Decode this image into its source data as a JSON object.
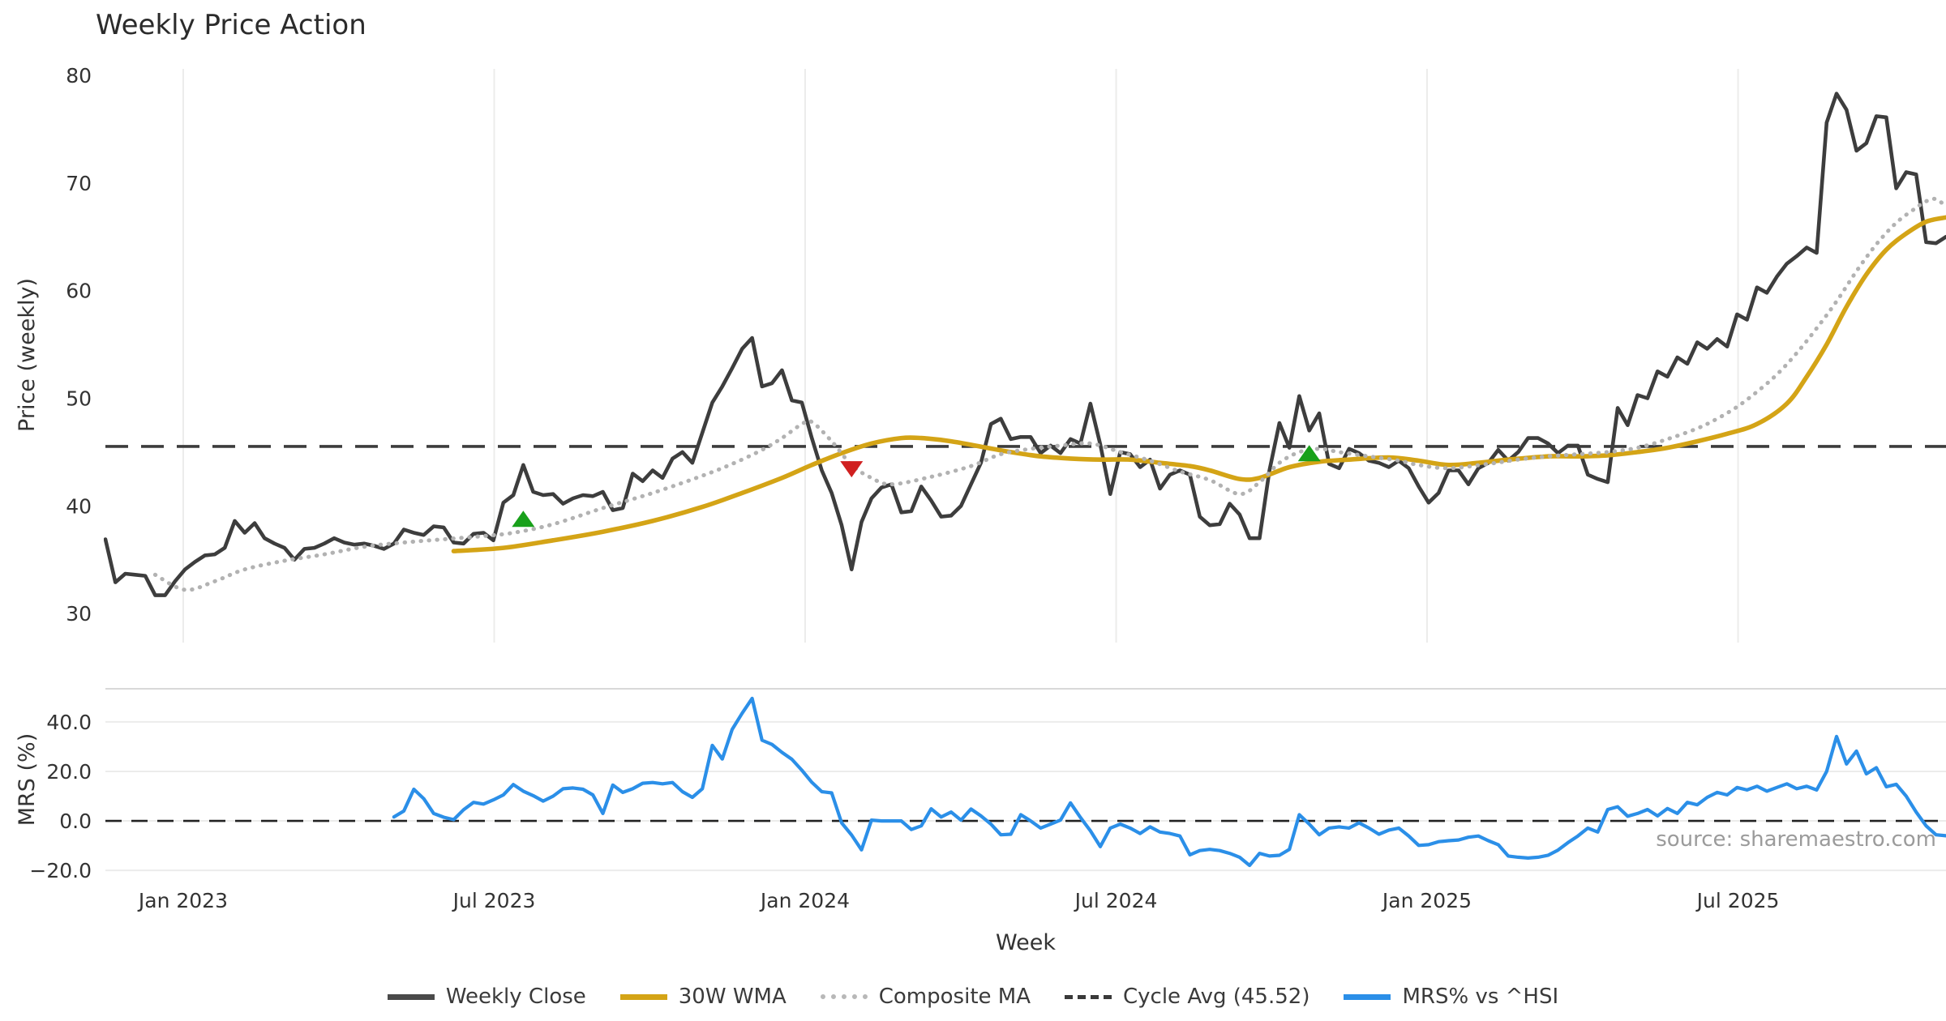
{
  "title": "Weekly Price Action",
  "watermark": "source: sharemaestro.com",
  "xlabel": "Week",
  "price_panel": {
    "ylabel": "Price (weekly)"
  },
  "mrs_panel": {
    "ylabel": "MRS (%)"
  },
  "legend": {
    "items": [
      {
        "label": "Weekly Close",
        "swatch": "solid",
        "color": "#4a4a4a"
      },
      {
        "label": "30W WMA",
        "swatch": "solid",
        "color": "#d4a416"
      },
      {
        "label": "Composite MA",
        "swatch": "dotted",
        "color": "#b8b8b8"
      },
      {
        "label": "Cycle Avg (45.52)",
        "swatch": "dashed",
        "color": "#3a3a3a"
      },
      {
        "label": "MRS% vs ^HSI",
        "swatch": "solid",
        "color": "#2b8fe8"
      }
    ]
  },
  "chart_data": {
    "type": "line",
    "panels": [
      {
        "id": "price",
        "ylabel": "Price (weekly)",
        "ylim": [
          27.3,
          80.6
        ],
        "yticks": [
          {
            "label": "30",
            "v": 30
          },
          {
            "label": "40",
            "v": 40
          },
          {
            "label": "50",
            "v": 50
          },
          {
            "label": "60",
            "v": 60
          },
          {
            "label": "70",
            "v": 70
          },
          {
            "label": "80",
            "v": 80
          }
        ],
        "grid": "vertical"
      },
      {
        "id": "mrs",
        "ylabel": "MRS (%)",
        "ylim": [
          -25.2,
          53.4
        ],
        "yticks": [
          {
            "label": "−20.0",
            "v": -20
          },
          {
            "label": "0.0",
            "v": 0
          },
          {
            "label": "20.0",
            "v": 20
          },
          {
            "label": "40.0",
            "v": 40
          }
        ],
        "grid": "horizontal"
      }
    ],
    "x_ticks": [
      {
        "label": "Jan 2023",
        "i": 7.82
      },
      {
        "label": "Jul 2023",
        "i": 39.08
      },
      {
        "label": "Jan 2024",
        "i": 70.33
      },
      {
        "label": "Jul 2024",
        "i": 101.59
      },
      {
        "label": "Jan 2025",
        "i": 132.84
      },
      {
        "label": "Jul 2025",
        "i": 164.1
      }
    ],
    "x_range": [
      0,
      185
    ],
    "cycle_avg": {
      "value": 45.52,
      "label": "Cycle Avg (45.52)",
      "color": "#3c3c3c"
    },
    "mrs_zero_line": {
      "value": 0,
      "color": "#222222"
    },
    "colors": {
      "close": "#3d3d3d",
      "wma": "#d4a416",
      "composite": "#b2b2b2",
      "mrs": "#2b8fe8",
      "marker_up": "#18a01a",
      "marker_down": "#d02020",
      "grid": "#ececeb",
      "spine": "#d9d9d9"
    },
    "series": [
      {
        "id": "close",
        "name": "Weekly Close",
        "panel": "price",
        "style": "solid",
        "width": 4.6,
        "start": 0,
        "values": [
          36.9,
          32.9,
          33.7,
          33.6,
          33.5,
          31.7,
          31.7,
          33.0,
          34.1,
          34.8,
          35.4,
          35.5,
          36.1,
          38.6,
          37.5,
          38.4,
          37.0,
          36.5,
          36.1,
          35.0,
          36.0,
          36.1,
          36.5,
          37.0,
          36.6,
          36.4,
          36.5,
          36.3,
          36.0,
          36.5,
          37.8,
          37.5,
          37.3,
          38.1,
          38.0,
          36.6,
          36.5,
          37.4,
          37.5,
          36.8,
          40.3,
          41.0,
          43.8,
          41.3,
          41.0,
          41.1,
          40.2,
          40.7,
          41.0,
          40.9,
          41.3,
          39.6,
          39.8,
          43.0,
          42.3,
          43.3,
          42.6,
          44.4,
          45.0,
          44.0,
          46.8,
          49.6,
          51.1,
          52.8,
          54.6,
          55.6,
          51.1,
          51.4,
          52.6,
          49.8,
          49.6,
          46.3,
          43.3,
          41.2,
          38.2,
          34.1,
          38.5,
          40.7,
          41.7,
          42.0,
          39.4,
          39.5,
          41.8,
          40.5,
          39.0,
          39.1,
          40.0,
          42.0,
          44.0,
          47.6,
          48.1,
          46.2,
          46.4,
          46.4,
          44.9,
          45.6,
          44.9,
          46.2,
          45.8,
          49.5,
          45.7,
          41.1,
          45.0,
          44.8,
          43.6,
          44.3,
          41.6,
          42.9,
          43.3,
          42.9,
          39.0,
          38.2,
          38.3,
          40.2,
          39.2,
          37.0,
          37.0,
          43.3,
          47.7,
          45.4,
          50.2,
          47.0,
          48.6,
          43.9,
          43.5,
          45.3,
          44.9,
          44.2,
          44.0,
          43.6,
          44.2,
          43.5,
          41.8,
          40.3,
          41.2,
          43.3,
          43.3,
          42.0,
          43.5,
          44.0,
          45.2,
          44.2,
          45.0,
          46.3,
          46.3,
          45.8,
          44.9,
          45.6,
          45.6,
          42.9,
          42.5,
          42.2,
          49.1,
          47.5,
          50.3,
          50.0,
          52.5,
          52.0,
          53.8,
          53.2,
          55.2,
          54.6,
          55.5,
          54.8,
          57.8,
          57.3,
          60.3,
          59.8,
          61.3,
          62.5,
          63.2,
          64.0,
          63.5,
          75.6,
          78.3,
          76.8,
          73.0,
          73.7,
          76.2,
          76.1,
          69.5,
          71.0,
          70.8,
          64.5,
          64.4,
          65.0
        ]
      },
      {
        "id": "wma",
        "name": "30W WMA",
        "panel": "price",
        "style": "solid",
        "width": 5.6,
        "smooth": true,
        "points": [
          [
            35,
            35.8
          ],
          [
            40,
            36.1
          ],
          [
            45,
            36.8
          ],
          [
            50,
            37.6
          ],
          [
            55,
            38.6
          ],
          [
            60,
            39.9
          ],
          [
            64,
            41.2
          ],
          [
            68,
            42.6
          ],
          [
            71,
            43.8
          ],
          [
            74,
            44.9
          ],
          [
            77,
            45.8
          ],
          [
            80,
            46.3
          ],
          [
            82,
            46.3
          ],
          [
            85,
            46.0
          ],
          [
            88,
            45.5
          ],
          [
            91,
            45.0
          ],
          [
            94,
            44.6
          ],
          [
            97,
            44.4
          ],
          [
            100,
            44.3
          ],
          [
            103,
            44.3
          ],
          [
            106,
            44.0
          ],
          [
            109,
            43.7
          ],
          [
            111,
            43.3
          ],
          [
            114,
            42.5
          ],
          [
            116,
            42.6
          ],
          [
            119,
            43.6
          ],
          [
            122,
            44.1
          ],
          [
            125,
            44.3
          ],
          [
            129,
            44.5
          ],
          [
            132,
            44.2
          ],
          [
            135,
            43.8
          ],
          [
            138,
            44.0
          ],
          [
            141,
            44.3
          ],
          [
            145,
            44.6
          ],
          [
            148,
            44.6
          ],
          [
            151,
            44.7
          ],
          [
            154,
            45.0
          ],
          [
            157,
            45.4
          ],
          [
            160,
            46.0
          ],
          [
            163,
            46.7
          ],
          [
            166,
            47.6
          ],
          [
            169,
            49.5
          ],
          [
            171,
            52.0
          ],
          [
            173,
            55.0
          ],
          [
            175,
            58.5
          ],
          [
            177,
            61.5
          ],
          [
            179,
            63.8
          ],
          [
            181,
            65.3
          ],
          [
            183,
            66.4
          ],
          [
            185,
            66.8
          ]
        ]
      },
      {
        "id": "composite",
        "name": "Composite MA",
        "panel": "price",
        "style": "dotted",
        "width": 4.4,
        "smooth": true,
        "points": [
          [
            5,
            33.6
          ],
          [
            8,
            32.2
          ],
          [
            11,
            33.0
          ],
          [
            14,
            34.1
          ],
          [
            18,
            34.9
          ],
          [
            22,
            35.5
          ],
          [
            26,
            36.2
          ],
          [
            30,
            36.6
          ],
          [
            34,
            36.9
          ],
          [
            38,
            37.2
          ],
          [
            41,
            37.5
          ],
          [
            45,
            38.3
          ],
          [
            50,
            39.8
          ],
          [
            55,
            41.2
          ],
          [
            60,
            42.8
          ],
          [
            63,
            43.9
          ],
          [
            66,
            45.2
          ],
          [
            68,
            46.3
          ],
          [
            70,
            47.6
          ],
          [
            71,
            47.8
          ],
          [
            73,
            46.0
          ],
          [
            75,
            43.8
          ],
          [
            77,
            42.6
          ],
          [
            79,
            42.0
          ],
          [
            83,
            42.7
          ],
          [
            87,
            43.7
          ],
          [
            90,
            44.8
          ],
          [
            93,
            45.3
          ],
          [
            96,
            45.6
          ],
          [
            99,
            45.8
          ],
          [
            102,
            45.0
          ],
          [
            105,
            44.2
          ],
          [
            108,
            43.2
          ],
          [
            111,
            42.4
          ],
          [
            114,
            41.1
          ],
          [
            116,
            42.2
          ],
          [
            118,
            44.0
          ],
          [
            120,
            45.0
          ],
          [
            122,
            45.3
          ],
          [
            124,
            45.0
          ],
          [
            127,
            44.6
          ],
          [
            130,
            44.2
          ],
          [
            132,
            43.8
          ],
          [
            135,
            43.5
          ],
          [
            139,
            43.9
          ],
          [
            142,
            44.3
          ],
          [
            145,
            44.6
          ],
          [
            148,
            44.8
          ],
          [
            151,
            45.0
          ],
          [
            154,
            45.4
          ],
          [
            157,
            46.2
          ],
          [
            160,
            47.2
          ],
          [
            162,
            48.1
          ],
          [
            164,
            49.2
          ],
          [
            166,
            50.6
          ],
          [
            168,
            52.2
          ],
          [
            170,
            54.2
          ],
          [
            172,
            56.5
          ],
          [
            174,
            59.0
          ],
          [
            176,
            61.8
          ],
          [
            178,
            64.3
          ],
          [
            180,
            66.3
          ],
          [
            182,
            67.7
          ],
          [
            183,
            68.3
          ],
          [
            184,
            68.5
          ],
          [
            185,
            67.8
          ]
        ]
      },
      {
        "id": "mrs",
        "name": "MRS% vs ^HSI",
        "panel": "mrs",
        "style": "solid",
        "width": 4.2,
        "start": 29,
        "values": [
          1.6,
          4.0,
          12.8,
          9.0,
          3.0,
          1.5,
          0.5,
          4.5,
          7.5,
          6.8,
          8.5,
          10.5,
          14.7,
          12.0,
          10.2,
          8.0,
          10.0,
          13.0,
          13.3,
          12.8,
          10.5,
          3.0,
          14.5,
          11.5,
          13.0,
          15.2,
          15.5,
          15.0,
          15.5,
          11.8,
          9.5,
          13.0,
          30.5,
          25.0,
          37.0,
          43.5,
          49.5,
          32.6,
          30.9,
          27.7,
          24.9,
          20.5,
          15.6,
          11.8,
          11.3,
          -0.8,
          -5.7,
          -11.7,
          0.3,
          0.0,
          0.0,
          0.0,
          -3.5,
          -2.0,
          4.9,
          1.6,
          3.6,
          0.3,
          4.8,
          2.0,
          -1.3,
          -5.6,
          -5.4,
          2.5,
          0.0,
          -2.9,
          -1.3,
          0.3,
          7.3,
          1.4,
          -4.0,
          -10.4,
          -2.9,
          -1.3,
          -2.9,
          -5.1,
          -2.4,
          -4.5,
          -5.1,
          -6.1,
          -13.7,
          -12.0,
          -11.5,
          -12.0,
          -13.1,
          -14.7,
          -18.0,
          -13.1,
          -14.2,
          -13.9,
          -11.5,
          2.5,
          -1.3,
          -5.6,
          -2.9,
          -2.4,
          -2.9,
          -0.8,
          -2.9,
          -5.4,
          -3.7,
          -2.9,
          -6.1,
          -9.9,
          -9.6,
          -8.4,
          -8.0,
          -7.7,
          -6.6,
          -6.1,
          -8.0,
          -9.6,
          -14.2,
          -14.7,
          -15.0,
          -14.7,
          -13.9,
          -11.8,
          -8.8,
          -6.1,
          -2.9,
          -4.5,
          4.6,
          5.7,
          1.9,
          3.0,
          4.6,
          2.0,
          5.0,
          3.0,
          7.5,
          6.5,
          9.5,
          11.5,
          10.5,
          13.5,
          12.5,
          14.0,
          12.0,
          13.5,
          15.0,
          13.0,
          14.0,
          12.5,
          20.0,
          34.1,
          23.0,
          28.2,
          19.0,
          21.5,
          13.8,
          14.8,
          10.0,
          3.6,
          -2.0,
          -5.6,
          -6.0
        ]
      }
    ],
    "markers": [
      {
        "index": 42,
        "value": 38.8,
        "direction": "up"
      },
      {
        "index": 75,
        "value": 43.4,
        "direction": "down"
      },
      {
        "index": 121,
        "value": 44.9,
        "direction": "up"
      }
    ]
  }
}
